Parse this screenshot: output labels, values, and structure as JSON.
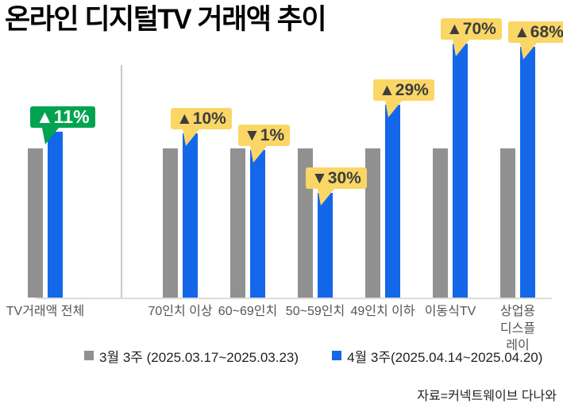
{
  "title": "온라인 디지털TV 거래액 추이",
  "source": "자료=커넥트웨이브 다나와",
  "colors": {
    "gray_bar": "#919191",
    "blue_bar": "#1467e8",
    "green_badge": "#00a350",
    "yellow_badge": "#f9d666",
    "green_badge_text": "#ffffff",
    "yellow_badge_text": "#3d3d3d",
    "axis_line": "#dcdcdc",
    "divider_line": "#c9c9c9"
  },
  "legend": [
    {
      "label": "3월 3주 (2025.03.17~2025.03.23)",
      "color": "#919191"
    },
    {
      "label": "4월 3주(2025.04.14~2025.04.20)",
      "color": "#1467e8"
    }
  ],
  "chart_data": {
    "type": "bar",
    "title": "온라인 디지털TV 거래액 추이",
    "categories": [
      "TV거래액 전체",
      "70인치 이상",
      "60~69인치",
      "50~59인치",
      "49인치 이하",
      "이동식TV",
      "상업용\n디스플레이"
    ],
    "series": [
      {
        "name": "3월 3주 (2025.03.17~2025.03.23)",
        "color": "#919191",
        "values": [
          100,
          100,
          100,
          100,
          100,
          100,
          100
        ]
      },
      {
        "name": "4월 3주(2025.04.14~2025.04.20)",
        "color": "#1467e8",
        "values": [
          111,
          110,
          99,
          70,
          129,
          170,
          168
        ]
      }
    ],
    "change_labels": [
      {
        "text": "▲11%",
        "direction": "up",
        "badge": "green"
      },
      {
        "text": "▲10%",
        "direction": "up",
        "badge": "yellow"
      },
      {
        "text": "▼1%",
        "direction": "down",
        "badge": "yellow"
      },
      {
        "text": "▼30%",
        "direction": "down",
        "badge": "yellow"
      },
      {
        "text": "▲29%",
        "direction": "up",
        "badge": "yellow"
      },
      {
        "text": "▲70%",
        "direction": "up",
        "badge": "yellow"
      },
      {
        "text": "▲68%",
        "direction": "up",
        "badge": "yellow"
      }
    ],
    "xlabel": "",
    "ylabel": "",
    "grid": false,
    "legend_position": "bottom"
  }
}
